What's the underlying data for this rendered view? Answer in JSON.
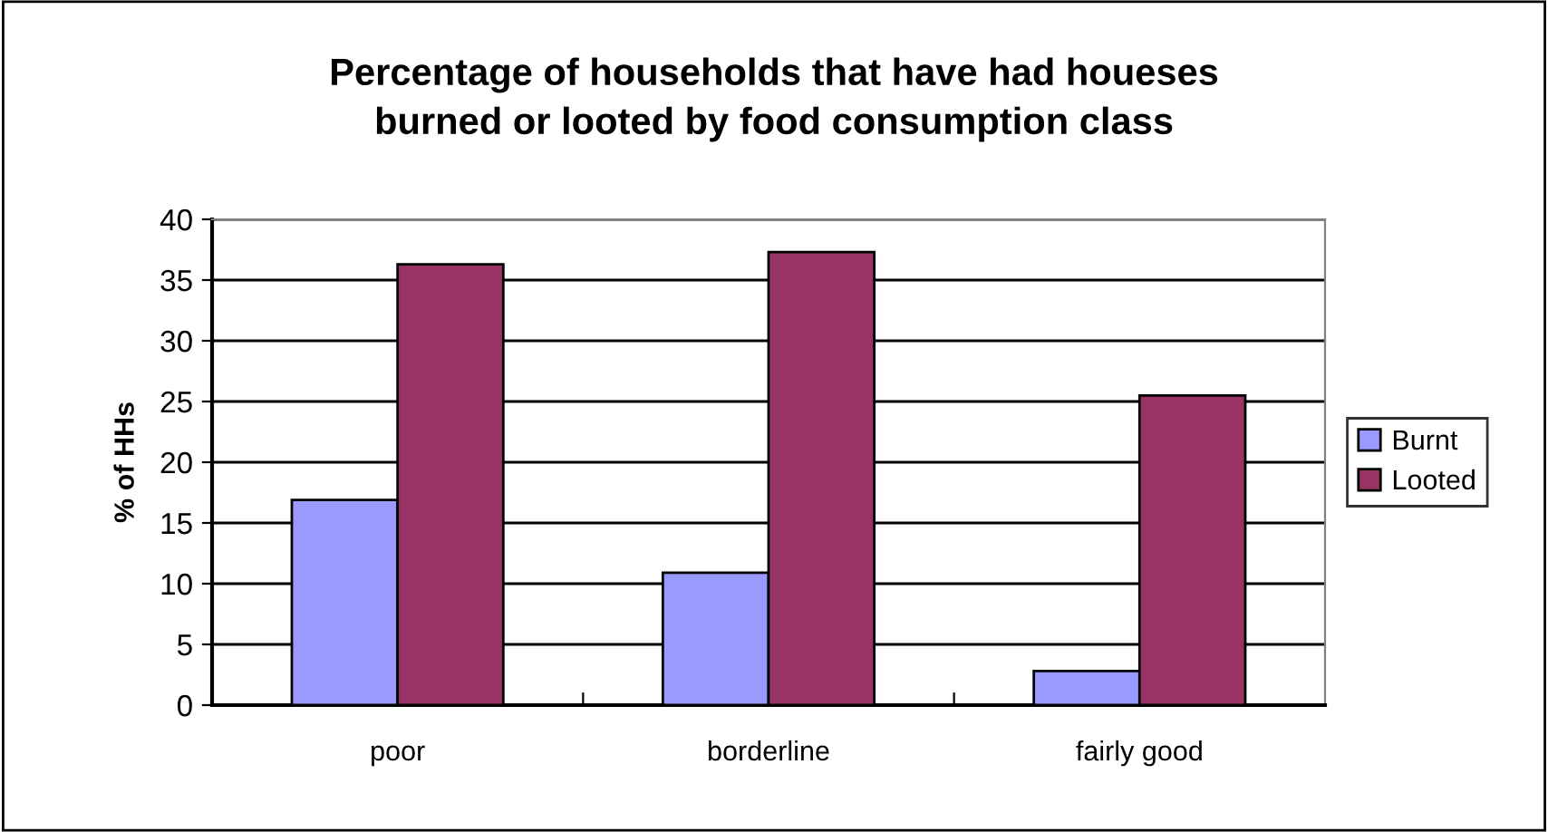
{
  "chart_data": {
    "type": "bar",
    "title": "Percentage of households that have had houeses\nburned or looted by food consumption class",
    "ylabel": "% of HHs",
    "categories": [
      "poor",
      "borderline",
      "fairly good"
    ],
    "series": [
      {
        "name": "Burnt",
        "color": "#9999ff",
        "values": [
          16.9,
          10.9,
          2.8
        ]
      },
      {
        "name": "Looted",
        "color": "#993366",
        "values": [
          36.3,
          37.3,
          25.5
        ]
      }
    ],
    "ylim": [
      0,
      40
    ],
    "yticks": [
      0,
      5,
      10,
      15,
      20,
      25,
      30,
      35,
      40
    ],
    "grid": "y",
    "legend": "right"
  }
}
